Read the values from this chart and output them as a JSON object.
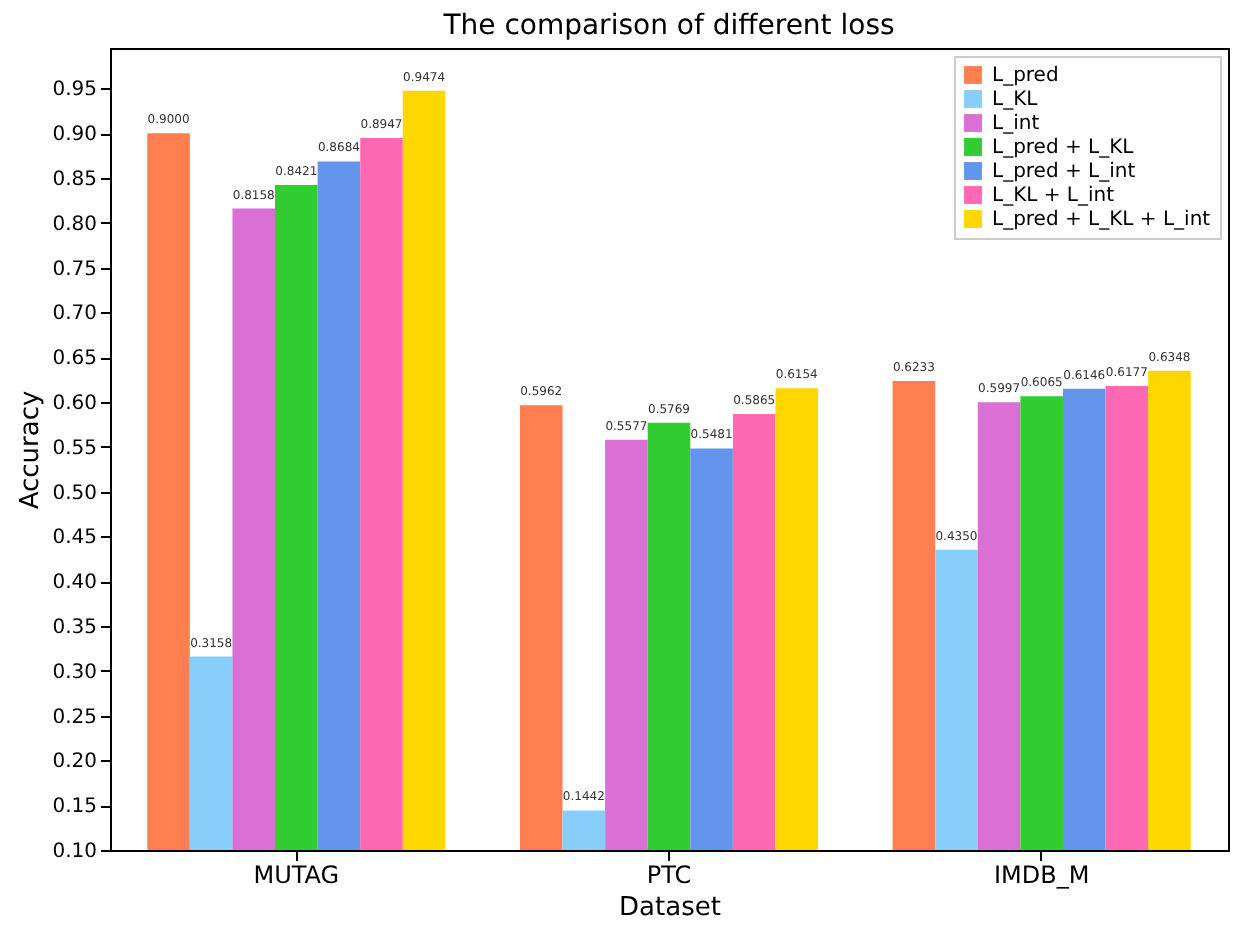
{
  "chart_data": {
    "type": "bar",
    "title": "The comparison of different loss",
    "xlabel": "Dataset",
    "ylabel": "Accuracy",
    "categories": [
      "MUTAG",
      "PTC",
      "IMDB_M"
    ],
    "series": [
      {
        "name": "L_pred",
        "color": "#ff7f50",
        "values": [
          0.9,
          0.5962,
          0.6233
        ],
        "value_labels": [
          "0.9000",
          "0.5962",
          "0.6233"
        ]
      },
      {
        "name": "L_KL",
        "color": "#87cefa",
        "values": [
          0.3158,
          0.1442,
          0.435
        ],
        "value_labels": [
          "0.3158",
          "0.1442",
          "0.4350"
        ]
      },
      {
        "name": "L_int",
        "color": "#da70d6",
        "values": [
          0.8158,
          0.5577,
          0.5997
        ],
        "value_labels": [
          "0.8158",
          "0.5577",
          "0.5997"
        ]
      },
      {
        "name": "L_pred + L_KL",
        "color": "#32cd32",
        "values": [
          0.8421,
          0.5769,
          0.6065
        ],
        "value_labels": [
          "0.8421",
          "0.5769",
          "0.6065"
        ]
      },
      {
        "name": "L_pred + L_int",
        "color": "#6495ed",
        "values": [
          0.8684,
          0.5481,
          0.6146
        ],
        "value_labels": [
          "0.8684",
          "0.5481",
          "0.6146"
        ]
      },
      {
        "name": "L_KL + L_int",
        "color": "#ff69b4",
        "values": [
          0.8947,
          0.5865,
          0.6177
        ],
        "value_labels": [
          "0.8947",
          "0.5865",
          "0.6177"
        ]
      },
      {
        "name": "L_pred + L_KL + L_int",
        "color": "#ffd700",
        "values": [
          0.9474,
          0.6154,
          0.6348
        ],
        "value_labels": [
          "0.9474",
          "0.6154",
          "0.6348"
        ]
      }
    ],
    "ylim": [
      0.1,
      0.995
    ],
    "yticks": [
      {
        "value": 0.1,
        "label": "0.10"
      },
      {
        "value": 0.15,
        "label": "0.15"
      },
      {
        "value": 0.2,
        "label": "0.20"
      },
      {
        "value": 0.25,
        "label": "0.25"
      },
      {
        "value": 0.3,
        "label": "0.30"
      },
      {
        "value": 0.35,
        "label": "0.35"
      },
      {
        "value": 0.4,
        "label": "0.40"
      },
      {
        "value": 0.45,
        "label": "0.45"
      },
      {
        "value": 0.5,
        "label": "0.50"
      },
      {
        "value": 0.55,
        "label": "0.55"
      },
      {
        "value": 0.6,
        "label": "0.60"
      },
      {
        "value": 0.65,
        "label": "0.65"
      },
      {
        "value": 0.7,
        "label": "0.70"
      },
      {
        "value": 0.75,
        "label": "0.75"
      },
      {
        "value": 0.8,
        "label": "0.80"
      },
      {
        "value": 0.85,
        "label": "0.85"
      },
      {
        "value": 0.9,
        "label": "0.90"
      },
      {
        "value": 0.95,
        "label": "0.95"
      }
    ],
    "grid": false,
    "legend": "top right"
  }
}
